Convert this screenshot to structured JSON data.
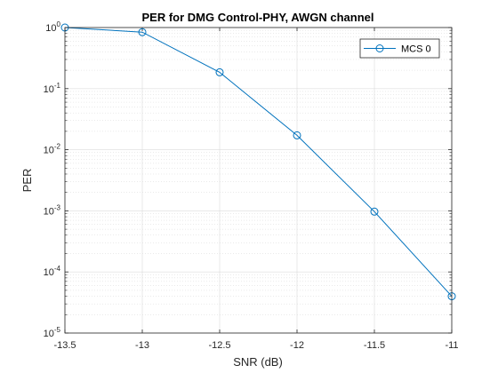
{
  "chart_data": {
    "type": "line",
    "title": "PER for DMG Control-PHY, AWGN channel",
    "xlabel": "SNR (dB)",
    "ylabel": "PER",
    "xlim": [
      -13.5,
      -11
    ],
    "ylim": [
      1e-05,
      1
    ],
    "yscale": "log",
    "x_ticks": [
      "-13.5",
      "-13",
      "-12.5",
      "-12",
      "-11.5",
      "-11"
    ],
    "y_ticks": [
      {
        "base": "10",
        "exp": "0"
      },
      {
        "base": "10",
        "exp": "-1"
      },
      {
        "base": "10",
        "exp": "-2"
      },
      {
        "base": "10",
        "exp": "-3"
      },
      {
        "base": "10",
        "exp": "-4"
      },
      {
        "base": "10",
        "exp": "-5"
      }
    ],
    "grid": true,
    "minor_grid": true,
    "legend_position": "top-right",
    "series": [
      {
        "name": "MCS 0",
        "color": "#0072BD",
        "marker": "circle",
        "x": [
          -13.5,
          -13,
          -12.5,
          -12,
          -11.5,
          -11
        ],
        "y": [
          1.0,
          0.84,
          0.185,
          0.0172,
          0.00097,
          4e-05
        ]
      }
    ]
  }
}
